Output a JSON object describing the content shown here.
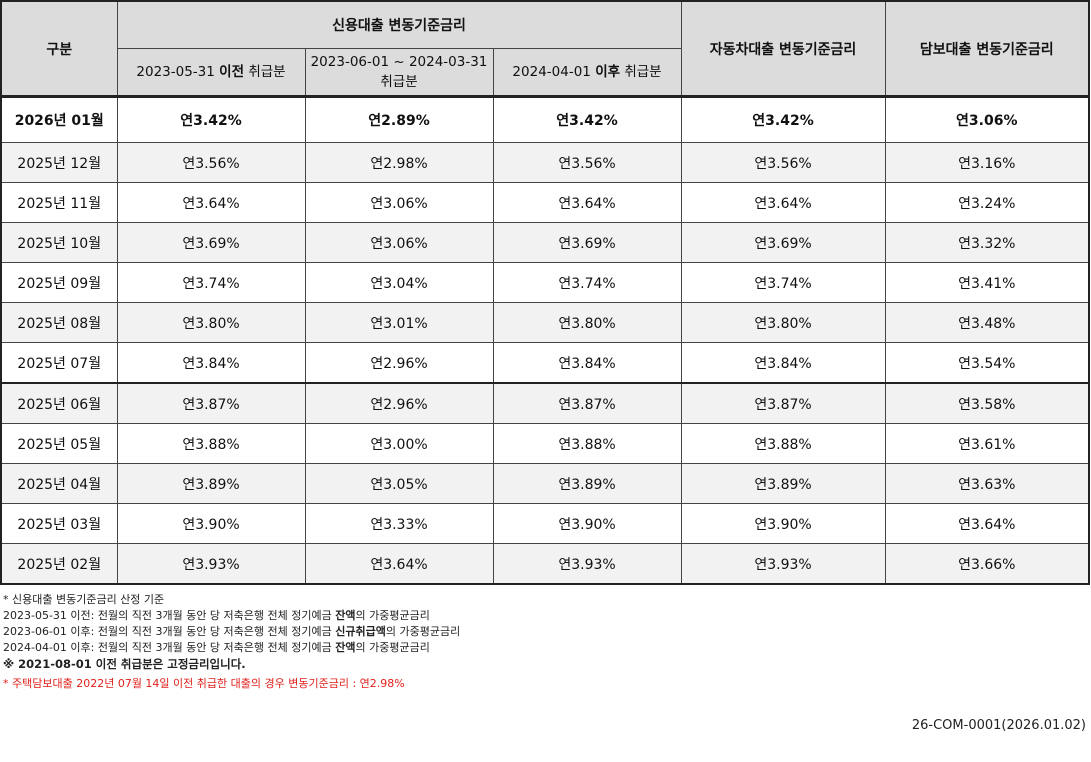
{
  "header": {
    "category": "구분",
    "credit_group": "신용대출 변동기준금리",
    "credit_sub1_date": "2023-05-31",
    "credit_sub1_bold": "이전",
    "credit_sub1_suffix": "취급분",
    "credit_sub2_line1": "2023-06-01 ~ 2024-03-31",
    "credit_sub2_line2": "취급분",
    "credit_sub3_date": "2024-04-01",
    "credit_sub3_bold": "이후",
    "credit_sub3_suffix": "취급분",
    "auto": "자동차대출 변동기준금리",
    "secured": "담보대출 변동기준금리"
  },
  "rows": [
    {
      "month": "2026년 01월",
      "c1": "연3.42%",
      "c2": "연2.89%",
      "c3": "연3.42%",
      "auto": "연3.42%",
      "secured": "연3.06%"
    },
    {
      "month": "2025년 12월",
      "c1": "연3.56%",
      "c2": "연2.98%",
      "c3": "연3.56%",
      "auto": "연3.56%",
      "secured": "연3.16%"
    },
    {
      "month": "2025년 11월",
      "c1": "연3.64%",
      "c2": "연3.06%",
      "c3": "연3.64%",
      "auto": "연3.64%",
      "secured": "연3.24%"
    },
    {
      "month": "2025년 10월",
      "c1": "연3.69%",
      "c2": "연3.06%",
      "c3": "연3.69%",
      "auto": "연3.69%",
      "secured": "연3.32%"
    },
    {
      "month": "2025년 09월",
      "c1": "연3.74%",
      "c2": "연3.04%",
      "c3": "연3.74%",
      "auto": "연3.74%",
      "secured": "연3.41%"
    },
    {
      "month": "2025년 08월",
      "c1": "연3.80%",
      "c2": "연3.01%",
      "c3": "연3.80%",
      "auto": "연3.80%",
      "secured": "연3.48%"
    },
    {
      "month": "2025년 07월",
      "c1": "연3.84%",
      "c2": "연2.96%",
      "c3": "연3.84%",
      "auto": "연3.84%",
      "secured": "연3.54%"
    },
    {
      "month": "2025년 06월",
      "c1": "연3.87%",
      "c2": "연2.96%",
      "c3": "연3.87%",
      "auto": "연3.87%",
      "secured": "연3.58%"
    },
    {
      "month": "2025년 05월",
      "c1": "연3.88%",
      "c2": "연3.00%",
      "c3": "연3.88%",
      "auto": "연3.88%",
      "secured": "연3.61%"
    },
    {
      "month": "2025년 04월",
      "c1": "연3.89%",
      "c2": "연3.05%",
      "c3": "연3.89%",
      "auto": "연3.89%",
      "secured": "연3.63%"
    },
    {
      "month": "2025년 03월",
      "c1": "연3.90%",
      "c2": "연3.33%",
      "c3": "연3.90%",
      "auto": "연3.90%",
      "secured": "연3.64%"
    },
    {
      "month": "2025년 02월",
      "c1": "연3.93%",
      "c2": "연3.64%",
      "c3": "연3.93%",
      "auto": "연3.93%",
      "secured": "연3.66%"
    }
  ],
  "notes": {
    "title": "* 신용대출 변동기준금리 산정 기준",
    "line1_pre": "2023-05-31 이전: 전월의 직전 3개월 동안 당 저축은행 전체 정기예금 ",
    "line1_bold": "잔액",
    "line1_post": "의 가중평균금리",
    "line2_pre": "2023-06-01 이후: 전월의 직전 3개월 동안 당 저축은행 전체 정기예금 ",
    "line2_bold": "신규취급액",
    "line2_post": "의 가중평균금리",
    "line3_pre": "2024-04-01 이후: 전월의 직전 3개월 동안 당 저축은행 전체 정기예금 ",
    "line3_bold": "잔액",
    "line3_post": "의 가중평균금리",
    "fixed": "※ 2021-08-01 이전 취급분은 고정금리입니다.",
    "mortgage": "* 주택담보대출 2022년 07월 14일 이전 취급한 대출의 경우 변동기준금리 : 연2.98%"
  },
  "doc_id": "26-COM-0001(2026.01.02)",
  "colors": {
    "header_bg": "#dcdcdc",
    "alt_row_bg": "#f2f2f2",
    "note_red": "#e0201b"
  }
}
